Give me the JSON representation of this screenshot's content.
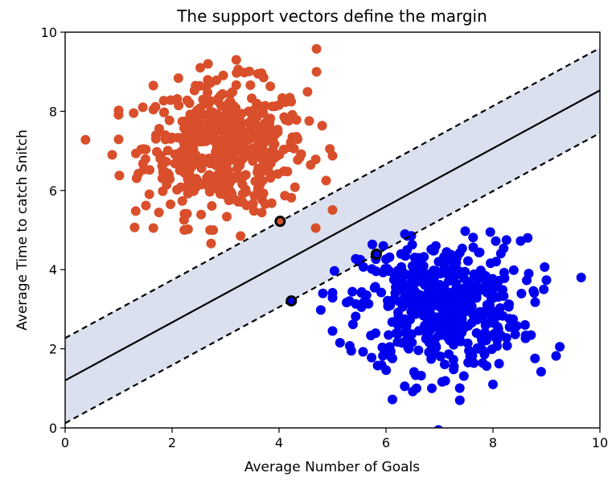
{
  "chart_data": {
    "type": "scatter",
    "title": "The support vectors define the margin",
    "xlabel": "Average Number of Goals",
    "ylabel": "Average Time to catch Snitch",
    "xlim": [
      0,
      10
    ],
    "ylim": [
      0,
      10
    ],
    "xticks": [
      "0",
      "2",
      "4",
      "6",
      "8",
      "10"
    ],
    "yticks": [
      "0",
      "2",
      "4",
      "6",
      "8",
      "10"
    ],
    "grid": false,
    "legend": "none",
    "colors": {
      "class_a": "#d94f2b",
      "class_b": "#0000ee",
      "margin_fill": "#dae0ee",
      "line": "#000000"
    },
    "decision_boundary": {
      "slope": 0.733,
      "intercept": 1.2
    },
    "margin_lines": [
      {
        "slope": 0.733,
        "intercept": 2.27
      },
      {
        "slope": 0.733,
        "intercept": 0.12
      }
    ],
    "support_vectors": [
      {
        "x": 4.02,
        "y": 5.22
      },
      {
        "x": 4.23,
        "y": 3.21
      },
      {
        "x": 5.82,
        "y": 4.39
      }
    ],
    "clusters": [
      {
        "class": "class_a",
        "center": [
          3.0,
          7.1
        ],
        "spread": [
          0.75,
          0.8
        ],
        "count": 500,
        "extremes": [
          [
            0.38,
            7.28
          ],
          [
            0.88,
            6.9
          ],
          [
            1.32,
            5.48
          ],
          [
            1.65,
            5.05
          ],
          [
            2.3,
            5.02
          ],
          [
            2.73,
            4.66
          ],
          [
            3.28,
            4.85
          ],
          [
            3.2,
            9.3
          ],
          [
            4.7,
            9.58
          ],
          [
            4.7,
            9.0
          ],
          [
            1.65,
            8.65
          ],
          [
            4.95,
            7.05
          ],
          [
            4.88,
            6.25
          ],
          [
            3.35,
            8.98
          ]
        ]
      },
      {
        "class": "class_b",
        "center": [
          7.0,
          3.1
        ],
        "spread": [
          0.75,
          0.8
        ],
        "count": 500,
        "extremes": [
          [
            4.78,
            2.98
          ],
          [
            4.82,
            3.4
          ],
          [
            5.0,
            2.45
          ],
          [
            5.35,
            1.95
          ],
          [
            5.52,
            4.25
          ],
          [
            6.12,
            0.72
          ],
          [
            6.35,
            1.05
          ],
          [
            6.5,
            0.92
          ],
          [
            6.98,
            -0.05
          ],
          [
            7.38,
            0.7
          ],
          [
            9.65,
            3.8
          ],
          [
            9.25,
            2.05
          ],
          [
            9.18,
            1.82
          ],
          [
            8.95,
            3.5
          ],
          [
            8.65,
            4.8
          ],
          [
            7.95,
            4.95
          ],
          [
            8.0,
            1.1
          ],
          [
            8.9,
            1.42
          ],
          [
            5.95,
            4.6
          ],
          [
            6.4,
            4.85
          ]
        ]
      }
    ]
  }
}
